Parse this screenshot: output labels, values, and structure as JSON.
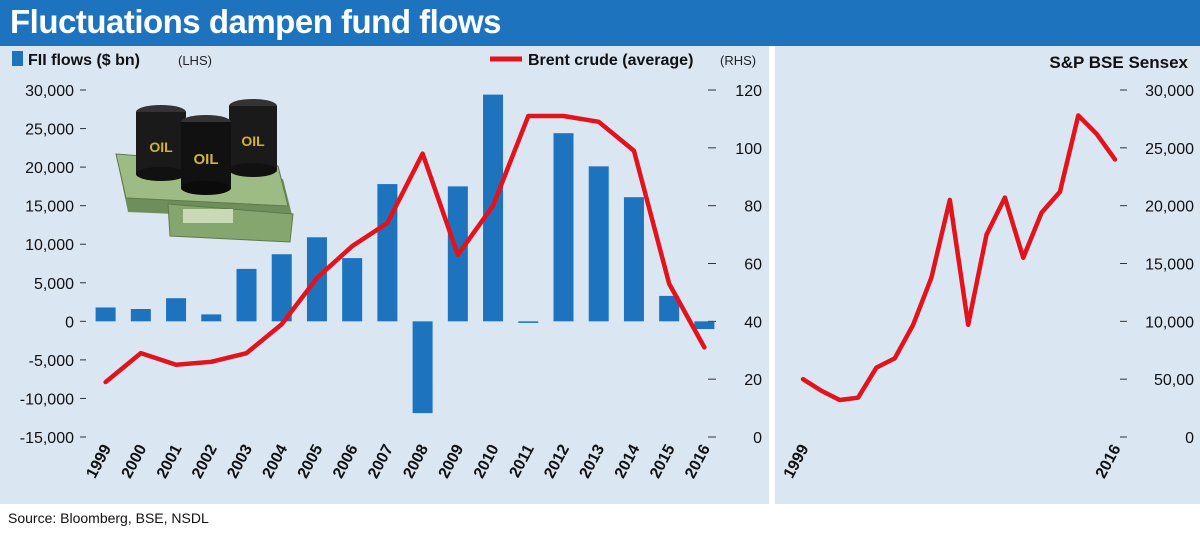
{
  "header": {
    "title": "Fluctuations dampen fund flows"
  },
  "source_text": "Source: Bloomberg, BSE, NSDL",
  "illustration": {
    "name": "oil-barrels-and-cash",
    "barrel_label": "OIL"
  },
  "colors": {
    "title_bar": "#1e73be",
    "panel_bg": "#dbe6f3",
    "bar": "#1e73be",
    "line": "#e3121b",
    "barrel": "#1a1a1a",
    "cash": "#8fb07a"
  },
  "chart_data": [
    {
      "type": "bar+line",
      "legend": [
        {
          "name": "FII flows ($ bn)",
          "suffix": "(LHS)",
          "marker": "bar"
        },
        {
          "name": "Brent crude (average)",
          "suffix": "(RHS)",
          "marker": "line"
        }
      ],
      "categories": [
        "1999",
        "2000",
        "2001",
        "2002",
        "2003",
        "2004",
        "2005",
        "2006",
        "2007",
        "2008",
        "2009",
        "2010",
        "2011",
        "2012",
        "2013",
        "2014",
        "2015",
        "2016"
      ],
      "series": [
        {
          "name": "FII flows ($ bn)",
          "type": "bar",
          "axis": "left",
          "values": [
            1800,
            1600,
            3000,
            900,
            6800,
            8700,
            10900,
            8200,
            17800,
            -11900,
            17500,
            29400,
            -200,
            24400,
            20100,
            16100,
            3300,
            -1000
          ]
        },
        {
          "name": "Brent crude (average)",
          "type": "line",
          "axis": "right",
          "values": [
            19,
            29,
            25,
            26,
            29,
            39,
            55,
            66,
            74,
            98,
            63,
            80,
            111,
            111,
            109,
            99,
            53,
            31
          ]
        }
      ],
      "left_axis": {
        "ylim": [
          -15000,
          30000
        ],
        "ticks": [
          "30,000",
          "25,000",
          "20,000",
          "15,000",
          "10,000",
          "5,000",
          "0",
          "-5,000",
          "-10,000",
          "-15,000"
        ],
        "tick_values": [
          30000,
          25000,
          20000,
          15000,
          10000,
          5000,
          0,
          -5000,
          -10000,
          -15000
        ]
      },
      "right_axis": {
        "ylim": [
          0,
          120
        ],
        "ticks": [
          "120",
          "100",
          "80",
          "60",
          "40",
          "20",
          "0"
        ],
        "tick_values": [
          120,
          100,
          80,
          60,
          40,
          20,
          0
        ]
      },
      "grid": false,
      "legend_position": "top"
    },
    {
      "type": "line",
      "title": "S&P BSE Sensex",
      "x": [
        "1999",
        "2000",
        "2001",
        "2002",
        "2003",
        "2004",
        "2005",
        "2006",
        "2007",
        "2008",
        "2009",
        "2010",
        "2011",
        "2012",
        "2013",
        "2014",
        "2015",
        "2016"
      ],
      "x_ticks": [
        "1999",
        "2016"
      ],
      "series": [
        {
          "name": "S&P BSE Sensex",
          "values": [
            5000,
            4000,
            3200,
            3400,
            6000,
            6800,
            9700,
            13800,
            20500,
            9700,
            17500,
            20700,
            15500,
            19400,
            21200,
            27800,
            26200,
            24000
          ]
        }
      ],
      "right_axis": {
        "ylim": [
          0,
          30000
        ],
        "ticks": [
          "30,000",
          "25,000",
          "20,000",
          "15,000",
          "10,000",
          "50,00",
          "0"
        ],
        "tick_values": [
          30000,
          25000,
          20000,
          15000,
          10000,
          5000,
          0
        ]
      },
      "grid": false
    }
  ]
}
